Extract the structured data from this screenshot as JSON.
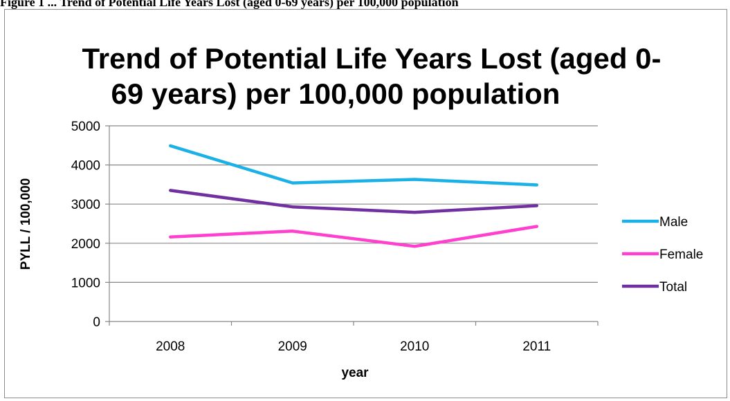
{
  "caption": "Figure 1 ... Trend of Potential Life Years Lost (aged 0-69 years) per 100,000 population",
  "chart_data": {
    "type": "line",
    "title_line1": "Trend of Potential Life Years Lost (aged 0-",
    "title_line2": "69 years) per 100,000 population",
    "xlabel": "year",
    "ylabel": "PYLL / 100,000",
    "categories": [
      "2008",
      "2009",
      "2010",
      "2011"
    ],
    "ylim": [
      0,
      5000
    ],
    "yticks": [
      0,
      1000,
      2000,
      3000,
      4000,
      5000
    ],
    "grid": true,
    "legend_position": "right",
    "series": [
      {
        "name": "Male",
        "color": "#1bb1e7",
        "values": [
          4490,
          3540,
          3630,
          3490
        ]
      },
      {
        "name": "Female",
        "color": "#ff3fce",
        "values": [
          2160,
          2310,
          1920,
          2430
        ]
      },
      {
        "name": "Total",
        "color": "#7030a0",
        "values": [
          3350,
          2930,
          2790,
          2960
        ]
      }
    ]
  }
}
